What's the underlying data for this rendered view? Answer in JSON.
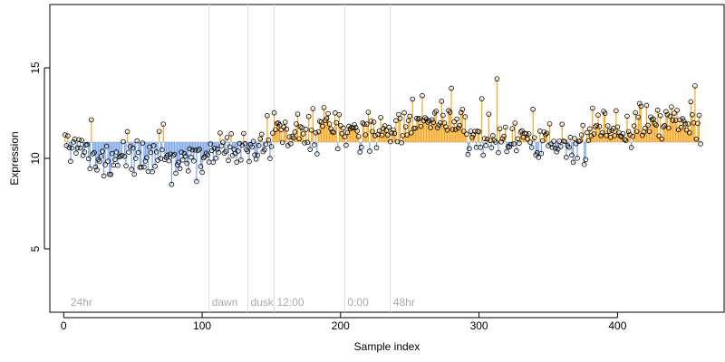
{
  "chart_data": {
    "type": "scatter",
    "xlabel": "Sample index",
    "ylabel": "Expression",
    "xlim": [
      -10,
      477
    ],
    "ylim": [
      1.5,
      18.5
    ],
    "x_ticks": [
      0,
      100,
      200,
      300,
      400
    ],
    "y_ticks": [
      5,
      10,
      15
    ],
    "baseline": 10.9,
    "grid": false,
    "legend": "none",
    "annotations": [
      {
        "x": 3,
        "label": "24hr",
        "line": false
      },
      {
        "x": 105,
        "label": "dawn",
        "line": true
      },
      {
        "x": 133,
        "label": "dusk",
        "line": true
      },
      {
        "x": 152,
        "label": "12:00",
        "line": true
      },
      {
        "x": 203,
        "label": "0:00",
        "line": true
      },
      {
        "x": 236,
        "label": "48hr",
        "line": true
      }
    ],
    "segments": [
      {
        "x_end": 15,
        "level": 10.5
      },
      {
        "x_end": 60,
        "level": 10.0
      },
      {
        "x_end": 105,
        "level": 10.1
      },
      {
        "x_end": 150,
        "level": 10.4
      },
      {
        "x_end": 175,
        "level": 11.4
      },
      {
        "x_end": 200,
        "level": 11.7
      },
      {
        "x_end": 235,
        "level": 11.5
      },
      {
        "x_end": 290,
        "level": 11.9
      },
      {
        "x_end": 340,
        "level": 11.1
      },
      {
        "x_end": 380,
        "level": 10.9
      },
      {
        "x_end": 410,
        "level": 11.8
      },
      {
        "x_end": 460,
        "level": 11.9
      }
    ],
    "noise_seed": 7,
    "noise_sd": 0.55,
    "n_points": 460,
    "up_color": "#f5a623",
    "down_color": "#7ea7e6",
    "point_color": "#000000"
  }
}
